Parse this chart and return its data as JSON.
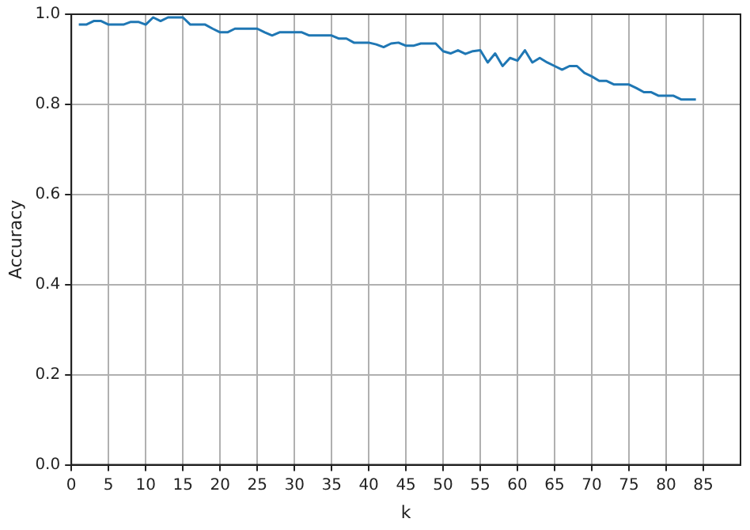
{
  "chart_data": {
    "type": "line",
    "xlabel": "k",
    "ylabel": "Accuracy",
    "x": [
      1,
      2,
      3,
      4,
      5,
      6,
      7,
      8,
      9,
      10,
      11,
      12,
      13,
      14,
      15,
      16,
      17,
      18,
      19,
      20,
      21,
      22,
      23,
      24,
      25,
      26,
      27,
      28,
      29,
      30,
      31,
      32,
      33,
      34,
      35,
      36,
      37,
      38,
      39,
      40,
      41,
      42,
      43,
      44,
      45,
      46,
      47,
      48,
      49,
      50,
      51,
      52,
      53,
      54,
      55,
      56,
      57,
      58,
      59,
      60,
      61,
      62,
      63,
      64,
      65,
      66,
      67,
      68,
      69,
      70,
      71,
      72,
      73,
      74,
      75,
      76,
      77,
      78,
      79,
      80,
      81,
      82,
      83,
      84
    ],
    "series": [
      {
        "color": "#1f77b4",
        "values": [
          0.977,
          0.977,
          0.985,
          0.985,
          0.977,
          0.977,
          0.977,
          0.983,
          0.983,
          0.977,
          0.993,
          0.985,
          0.993,
          0.993,
          0.993,
          0.977,
          0.977,
          0.977,
          0.968,
          0.96,
          0.96,
          0.968,
          0.968,
          0.968,
          0.968,
          0.96,
          0.953,
          0.96,
          0.96,
          0.96,
          0.96,
          0.953,
          0.953,
          0.953,
          0.953,
          0.946,
          0.946,
          0.937,
          0.937,
          0.937,
          0.933,
          0.927,
          0.935,
          0.937,
          0.93,
          0.93,
          0.935,
          0.935,
          0.935,
          0.918,
          0.913,
          0.92,
          0.912,
          0.918,
          0.92,
          0.893,
          0.913,
          0.885,
          0.903,
          0.897,
          0.92,
          0.893,
          0.903,
          0.893,
          0.885,
          0.877,
          0.885,
          0.885,
          0.87,
          0.862,
          0.852,
          0.852,
          0.844,
          0.844,
          0.844,
          0.836,
          0.827,
          0.827,
          0.819,
          0.819,
          0.819,
          0.811,
          0.811,
          0.811
        ]
      }
    ],
    "xlim": [
      0,
      90
    ],
    "xticks": [
      0,
      5,
      10,
      15,
      20,
      25,
      30,
      35,
      40,
      45,
      50,
      55,
      60,
      65,
      70,
      75,
      80,
      85
    ],
    "ylim": [
      0,
      1
    ],
    "yticks": [
      {
        "value": 0,
        "label": "0.0"
      },
      {
        "value": 0.2,
        "label": "0.2"
      },
      {
        "value": 0.4,
        "label": "0.4"
      },
      {
        "value": 0.6,
        "label": "0.6"
      },
      {
        "value": 0.8,
        "label": "0.8"
      },
      {
        "value": 1,
        "label": "1.0"
      }
    ],
    "grid": true,
    "marker": "none",
    "line_style": "solid"
  }
}
